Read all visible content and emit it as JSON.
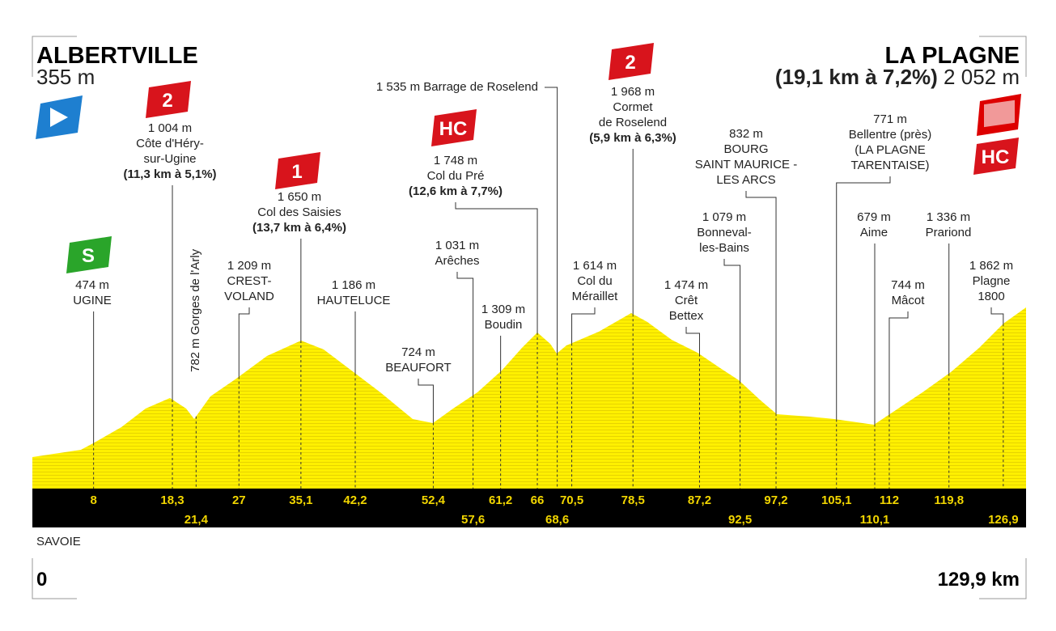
{
  "start": {
    "name": "ALBERTVILLE",
    "altitude": "355 m"
  },
  "finish": {
    "name": "LA PLAGNE",
    "climb": "(19,1 km à 7,2%)",
    "altitude": "2 052 m",
    "category": "HC"
  },
  "region": "SAVOIE",
  "distance_start": "0",
  "distance_end": "129,9 km",
  "waypoints": [
    {
      "km": "8",
      "lines": [
        "474 m",
        "UGINE"
      ],
      "category": "S"
    },
    {
      "km": "18,3",
      "lines": [
        "1 004 m",
        "Côte d'Héry-",
        "sur-Ugine"
      ],
      "climb": "(11,3 km à 5,1%)",
      "category": "2"
    },
    {
      "km": "21,4",
      "lines": [
        "782 m Gorges de l'Arly"
      ]
    },
    {
      "km": "27",
      "lines": [
        "1 209 m",
        "CREST-",
        "VOLAND"
      ]
    },
    {
      "km": "35,1",
      "lines": [
        "1 650 m",
        "Col des Saisies"
      ],
      "climb": "(13,7 km à 6,4%)",
      "category": "1"
    },
    {
      "km": "42,2",
      "lines": [
        "1 186 m",
        "HAUTELUCE"
      ]
    },
    {
      "km": "52,4",
      "lines": [
        "724 m",
        "BEAUFORT"
      ]
    },
    {
      "km": "57,6",
      "lines": [
        "1 031 m",
        "Arêches"
      ]
    },
    {
      "km": "61,2",
      "lines": [
        "1 309 m",
        "Boudin"
      ]
    },
    {
      "km": "66",
      "lines": [
        "1 748 m",
        "Col du Pré"
      ],
      "climb": "(12,6 km à 7,7%)",
      "category": "HC"
    },
    {
      "km": "68,6",
      "lines": [
        "1 535 m Barrage de Roselend"
      ]
    },
    {
      "km": "70,5",
      "lines": [
        "1 614 m",
        "Col du",
        "Méraillet"
      ]
    },
    {
      "km": "78,5",
      "lines": [
        "1 968 m",
        "Cormet",
        "de Roselend"
      ],
      "climb": "(5,9 km à 6,3%)",
      "category": "2"
    },
    {
      "km": "87,2",
      "lines": [
        "1 474 m",
        "Crêt",
        "Bettex"
      ]
    },
    {
      "km": "92,5",
      "lines": [
        "1 079 m",
        "Bonneval-",
        "les-Bains"
      ]
    },
    {
      "km": "97,2",
      "lines": [
        "832 m",
        "BOURG",
        "SAINT MAURICE -",
        "LES ARCS"
      ]
    },
    {
      "km": "105,1",
      "lines": [
        "771 m",
        "Bellentre (près)",
        "(LA PLAGNE",
        "TARENTAISE)"
      ]
    },
    {
      "km": "110,1",
      "lines": [
        "679 m",
        "Aime"
      ]
    },
    {
      "km": "112",
      "lines": [
        "744 m",
        "Mâcot"
      ]
    },
    {
      "km": "119,8",
      "lines": [
        "1 336 m",
        "Prariond"
      ]
    },
    {
      "km": "126,9",
      "lines": [
        "1 862 m",
        "Plagne",
        "1800"
      ]
    }
  ]
}
